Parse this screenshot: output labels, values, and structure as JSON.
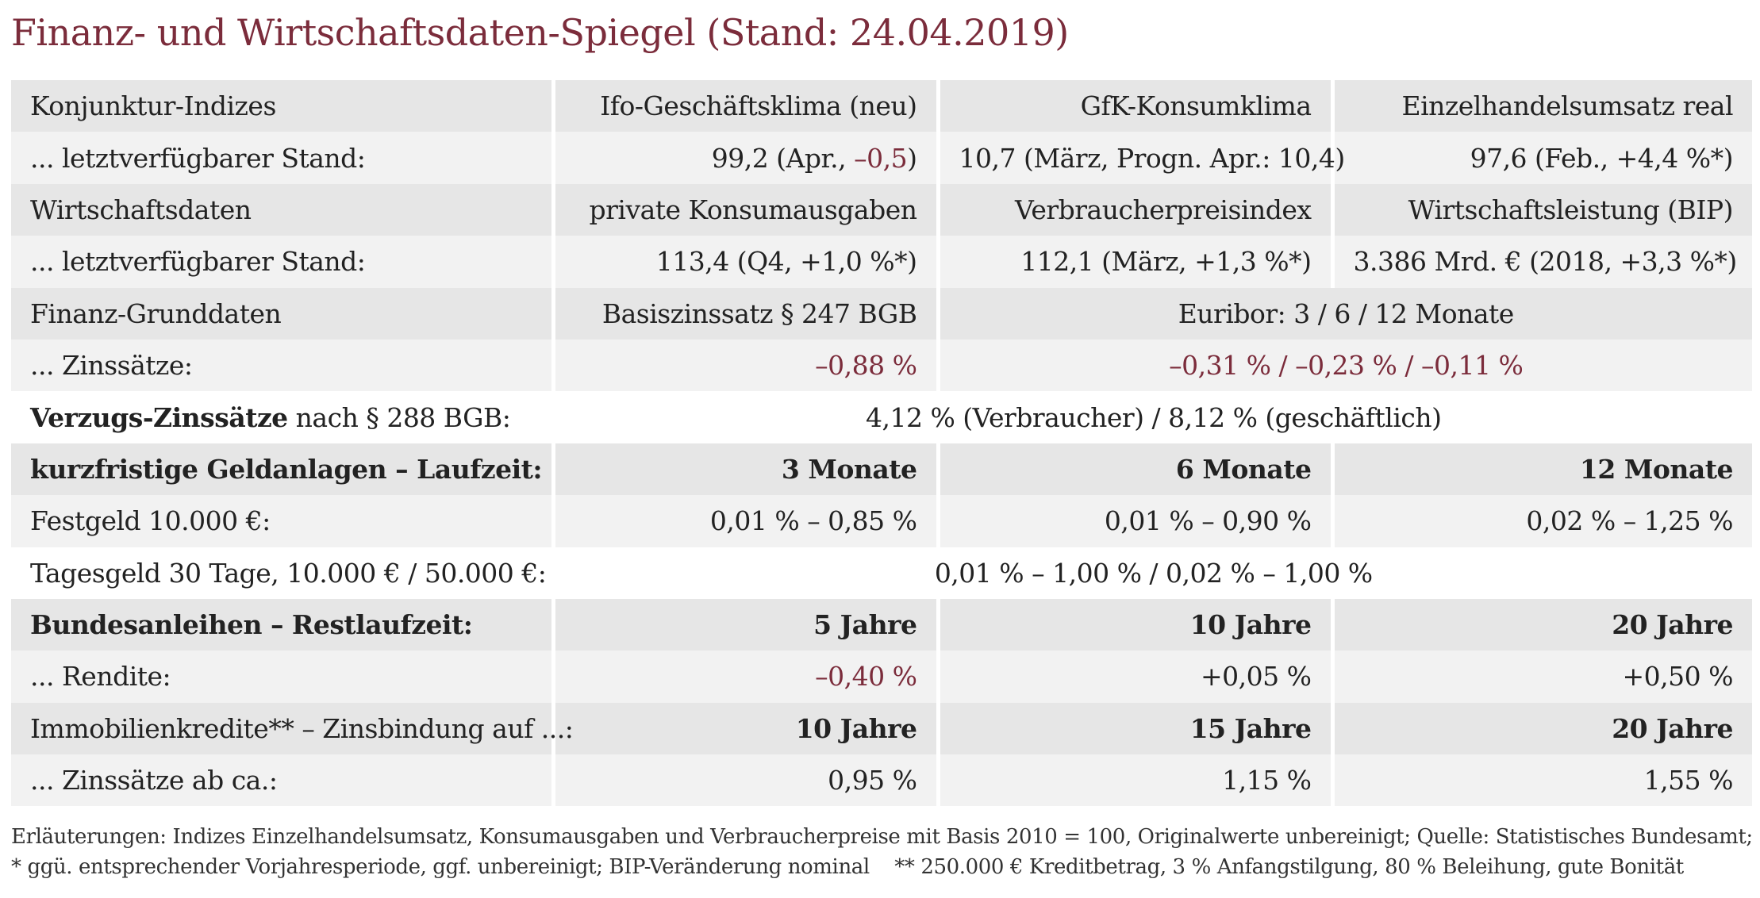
{
  "title": "Finanz- und Wirtschaftsdaten-Spiegel (Stand: 24.04.2019)",
  "konjunktur": {
    "header": "Konjunktur-Indizes",
    "col1": "Ifo-Geschäftsklima (neu)",
    "col2": "GfK-Konsumklima",
    "col3": "Einzelhandelsumsatz real",
    "label": "... letztverfügbarer Stand:",
    "v1_main": "99,2 (Apr., ",
    "v1_change": "–0,5",
    "v1_end": ")",
    "v2": "10,7 (März, Progn. Apr.: 10,4)",
    "v3": "97,6 (Feb., +4,4 %*)"
  },
  "wirtschaft": {
    "header": "Wirtschaftsdaten",
    "col1": "private Konsumausgaben",
    "col2": "Verbraucherpreisindex",
    "col3": "Wirtschaftsleistung (BIP)",
    "label": "... letztverfügbarer Stand:",
    "v1": "113,4 (Q4, +1,0 %*)",
    "v2": "112,1 (März, +1,3 %*)",
    "v3": "3.386 Mrd. € (2018, +3,3 %*)"
  },
  "finanz": {
    "header": "Finanz-Grunddaten",
    "col1": "Basiszinssatz § 247 BGB",
    "col23": "Euribor: 3 / 6 / 12 Monate",
    "label": "... Zinssätze:",
    "v1": "–0,88 %",
    "v23": "–0,31 % / –0,23 % / –0,11 %"
  },
  "verzug": {
    "label_bold": "Verzugs-Zinssätze",
    "label_rest": " nach § 288 BGB:",
    "value": "4,12 % (Verbraucher) / 8,12 % (geschäftlich)"
  },
  "geldanlagen": {
    "header": "kurzfristige Geldanlagen – Laufzeit:",
    "col1": "3 Monate",
    "col2": "6 Monate",
    "col3": "12 Monate",
    "festgeld_label": "Festgeld 10.000 €:",
    "festgeld_v1": "0,01 % – 0,85 %",
    "festgeld_v2": "0,01 % – 0,90 %",
    "festgeld_v3": "0,02 % – 1,25 %",
    "tagesgeld_label": "Tagesgeld 30 Tage, 10.000 € / 50.000 €:",
    "tagesgeld_value": "0,01 % – 1,00 % / 0,02 % – 1,00 %"
  },
  "bundesanleihen": {
    "header": "Bundesanleihen – Restlaufzeit:",
    "col1": "5 Jahre",
    "col2": "10 Jahre",
    "col3": "20 Jahre",
    "label": "... Rendite:",
    "v1": "–0,40 %",
    "v2": "+0,05 %",
    "v3": "+0,50 %"
  },
  "immobilien": {
    "header": "Immobilienkredite** – Zinsbindung auf ...:",
    "col1": "10 Jahre",
    "col2": "15 Jahre",
    "col3": "20 Jahre",
    "label": "... Zinssätze ab ca.:",
    "v1": "0,95 %",
    "v2": "1,15 %",
    "v3": "1,55 %"
  },
  "notes": {
    "line1": "Erläuterungen: Indizes Einzelhandelsumsatz, Konsumausgaben und Verbraucherpreise mit Basis 2010 = 100, Originalwerte unbereinigt; Quelle: Statistisches Bundesamt;",
    "line2": "* ggü. entsprechender Vorjahresperiode, ggf. unbereinigt; BIP-Veränderung nominal    ** 250.000 € Kreditbetrag, 3 % Anfangstilgung, 80 % Beleihung, gute Bonität"
  },
  "colors": {
    "accent": "#7b2c3b",
    "row_dark": "#e6e6e6",
    "row_light": "#f2f2f2"
  }
}
